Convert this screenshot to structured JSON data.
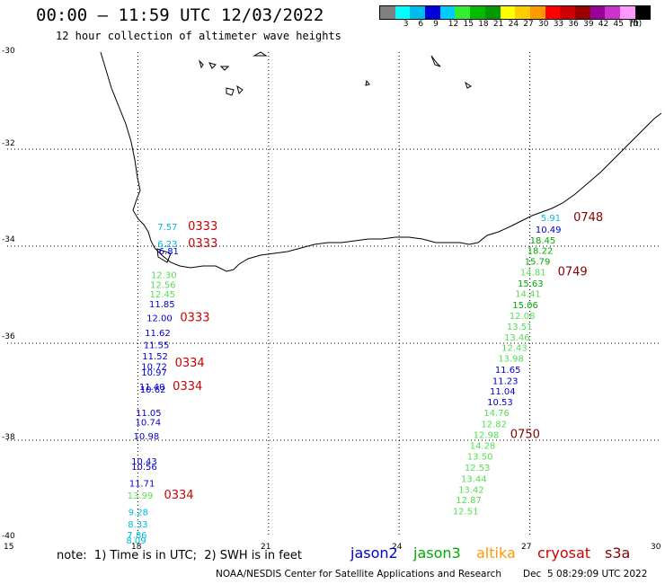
{
  "header": {
    "title": "00:00 – 11:59 UTC 12/03/2022",
    "subtitle": "12 hour collection of altimeter wave heights"
  },
  "legend": {
    "unit": "(ft)",
    "steps": [
      {
        "label": "",
        "color": "#808080"
      },
      {
        "label": "3",
        "color": "#00ffff"
      },
      {
        "label": "6",
        "color": "#00bbee"
      },
      {
        "label": "9",
        "color": "#0000dd"
      },
      {
        "label": "12",
        "color": "#00ccff"
      },
      {
        "label": "15",
        "color": "#33ee33"
      },
      {
        "label": "18",
        "color": "#00bb00"
      },
      {
        "label": "21",
        "color": "#009900"
      },
      {
        "label": "24",
        "color": "#ffff00"
      },
      {
        "label": "27",
        "color": "#ffcc00"
      },
      {
        "label": "30",
        "color": "#ff9900"
      },
      {
        "label": "33",
        "color": "#ff0000"
      },
      {
        "label": "36",
        "color": "#cc0000"
      },
      {
        "label": "39",
        "color": "#990000"
      },
      {
        "label": "42",
        "color": "#990099"
      },
      {
        "label": "45",
        "color": "#cc33cc"
      },
      {
        "label": "70",
        "color": "#ff99ff"
      },
      {
        "label": "",
        "color": "#000000"
      }
    ]
  },
  "axes": {
    "lat_labels": [
      "-30",
      "-32",
      "-34",
      "-36",
      "-38",
      "-40"
    ],
    "lon_labels": [
      "15",
      "18",
      "21",
      "24",
      "27",
      "30"
    ]
  },
  "colors": {
    "jason2": "#0000cc",
    "jason3": "#00aa00",
    "altika": "#ff9900",
    "cryosat": "#cc0000",
    "s3a": "#880000",
    "light_green": "#55dd55",
    "cyan": "#00bbdd"
  },
  "tracks": {
    "west": [
      {
        "v": "7.57",
        "c": "cyan",
        "lon": 18.45,
        "lat": -33.67
      },
      {
        "v": "6.23",
        "c": "cyan",
        "lon": 18.45,
        "lat": -34.02
      },
      {
        "v": "6.81",
        "c": "jason2",
        "lon": 18.48,
        "lat": -34.17
      },
      {
        "v": "12.30",
        "c": "light_green",
        "lon": 18.3,
        "lat": -34.66
      },
      {
        "v": "12.56",
        "c": "light_green",
        "lon": 18.28,
        "lat": -34.86
      },
      {
        "v": "12.45",
        "c": "light_green",
        "lon": 18.27,
        "lat": -35.06
      },
      {
        "v": "11.85",
        "c": "jason2",
        "lon": 18.26,
        "lat": -35.26
      },
      {
        "v": "12.00",
        "c": "jason2",
        "lon": 18.2,
        "lat": -35.55
      },
      {
        "v": "11.62",
        "c": "jason2",
        "lon": 18.16,
        "lat": -35.85
      },
      {
        "v": "11.55",
        "c": "jason2",
        "lon": 18.13,
        "lat": -36.1
      },
      {
        "v": "11.52",
        "c": "jason2",
        "lon": 18.1,
        "lat": -36.33
      },
      {
        "v": "10.72",
        "c": "jason2",
        "lon": 18.08,
        "lat": -36.55
      },
      {
        "v": "10.97",
        "c": "jason2",
        "lon": 18.08,
        "lat": -36.67
      },
      {
        "v": "11.40",
        "c": "jason2",
        "lon": 18.03,
        "lat": -36.96
      },
      {
        "v": "10.62",
        "c": "jason2",
        "lon": 18.05,
        "lat": -37.02
      },
      {
        "v": "11.05",
        "c": "jason2",
        "lon": 17.95,
        "lat": -37.5
      },
      {
        "v": "10.74",
        "c": "jason2",
        "lon": 17.94,
        "lat": -37.69
      },
      {
        "v": "10.98",
        "c": "jason2",
        "lon": 17.9,
        "lat": -37.98
      },
      {
        "v": "10.43",
        "c": "jason2",
        "lon": 17.85,
        "lat": -38.5
      },
      {
        "v": "10.56",
        "c": "jason2",
        "lon": 17.85,
        "lat": -38.61
      },
      {
        "v": "11.71",
        "c": "jason2",
        "lon": 17.8,
        "lat": -38.95
      },
      {
        "v": "13.99",
        "c": "light_green",
        "lon": 17.76,
        "lat": -39.2
      },
      {
        "v": "9.28",
        "c": "cyan",
        "lon": 17.78,
        "lat": -39.55
      },
      {
        "v": "8.33",
        "c": "cyan",
        "lon": 17.77,
        "lat": -39.8
      },
      {
        "v": "7.86",
        "c": "cyan",
        "lon": 17.75,
        "lat": -40.02
      },
      {
        "v": "8.09",
        "c": "cyan",
        "lon": 17.73,
        "lat": -40.13
      }
    ],
    "east": [
      {
        "v": "5.91",
        "c": "cyan",
        "lon": 27.25,
        "lat": -33.48
      },
      {
        "v": "10.49",
        "c": "jason2",
        "lon": 27.13,
        "lat": -33.72
      },
      {
        "v": "18.45",
        "c": "jason3",
        "lon": 27.0,
        "lat": -33.94
      },
      {
        "v": "18.22",
        "c": "jason3",
        "lon": 26.94,
        "lat": -34.16
      },
      {
        "v": "15.79",
        "c": "jason3",
        "lon": 26.88,
        "lat": -34.38
      },
      {
        "v": "14.81",
        "c": "light_green",
        "lon": 26.78,
        "lat": -34.6
      },
      {
        "v": "15.63",
        "c": "jason3",
        "lon": 26.72,
        "lat": -34.83
      },
      {
        "v": "14.41",
        "c": "light_green",
        "lon": 26.66,
        "lat": -35.05
      },
      {
        "v": "15.06",
        "c": "jason3",
        "lon": 26.6,
        "lat": -35.28
      },
      {
        "v": "12.08",
        "c": "light_green",
        "lon": 26.53,
        "lat": -35.5
      },
      {
        "v": "13.51",
        "c": "light_green",
        "lon": 26.47,
        "lat": -35.72
      },
      {
        "v": "13.46",
        "c": "light_green",
        "lon": 26.41,
        "lat": -35.94
      },
      {
        "v": "12.43",
        "c": "light_green",
        "lon": 26.35,
        "lat": -36.16
      },
      {
        "v": "13.98",
        "c": "light_green",
        "lon": 26.27,
        "lat": -36.38
      },
      {
        "v": "11.65",
        "c": "jason2",
        "lon": 26.2,
        "lat": -36.61
      },
      {
        "v": "11.23",
        "c": "jason2",
        "lon": 26.14,
        "lat": -36.84
      },
      {
        "v": "11.04",
        "c": "jason2",
        "lon": 26.08,
        "lat": -37.06
      },
      {
        "v": "10.53",
        "c": "jason2",
        "lon": 26.02,
        "lat": -37.28
      },
      {
        "v": "14.76",
        "c": "light_green",
        "lon": 25.94,
        "lat": -37.5
      },
      {
        "v": "12.82",
        "c": "light_green",
        "lon": 25.88,
        "lat": -37.73
      },
      {
        "v": "12.98",
        "c": "light_green",
        "lon": 25.7,
        "lat": -37.95
      },
      {
        "v": "14.28",
        "c": "light_green",
        "lon": 25.62,
        "lat": -38.18
      },
      {
        "v": "13.50",
        "c": "light_green",
        "lon": 25.56,
        "lat": -38.4
      },
      {
        "v": "12.53",
        "c": "light_green",
        "lon": 25.5,
        "lat": -38.63
      },
      {
        "v": "13.44",
        "c": "light_green",
        "lon": 25.42,
        "lat": -38.86
      },
      {
        "v": "13.42",
        "c": "light_green",
        "lon": 25.36,
        "lat": -39.08
      },
      {
        "v": "12.87",
        "c": "light_green",
        "lon": 25.3,
        "lat": -39.3
      },
      {
        "v": "12.51",
        "c": "light_green",
        "lon": 25.23,
        "lat": -39.53
      }
    ]
  },
  "times": [
    {
      "t": "0333",
      "c": "cryosat",
      "lon": 19.15,
      "lat": -33.67
    },
    {
      "t": "0333",
      "c": "cryosat",
      "lon": 19.15,
      "lat": -34.02
    },
    {
      "t": "0333",
      "c": "cryosat",
      "lon": 18.97,
      "lat": -35.55
    },
    {
      "t": "0334",
      "c": "cryosat",
      "lon": 18.85,
      "lat": -36.48
    },
    {
      "t": "0334",
      "c": "cryosat",
      "lon": 18.8,
      "lat": -36.96
    },
    {
      "t": "0334",
      "c": "cryosat",
      "lon": 18.6,
      "lat": -39.2
    },
    {
      "t": "0748",
      "c": "s3a",
      "lon": 28.0,
      "lat": -33.48
    },
    {
      "t": "0749",
      "c": "s3a",
      "lon": 27.64,
      "lat": -34.6
    },
    {
      "t": "0750",
      "c": "s3a",
      "lon": 26.55,
      "lat": -37.95
    }
  ],
  "footer": {
    "note": "note:  1) Time is in UTC;  2) SWH is in feet",
    "satellites": [
      {
        "name": "jason2",
        "c": "jason2"
      },
      {
        "name": "jason3",
        "c": "jason3"
      },
      {
        "name": "altika",
        "c": "altika"
      },
      {
        "name": "cryosat",
        "c": "cryosat"
      },
      {
        "name": "s3a",
        "c": "s3a"
      }
    ],
    "credit": "NOAA/NESDIS Center for Satellite Applications and Research",
    "timestamp": "Dec  5 08:29:09 UTC 2022"
  }
}
